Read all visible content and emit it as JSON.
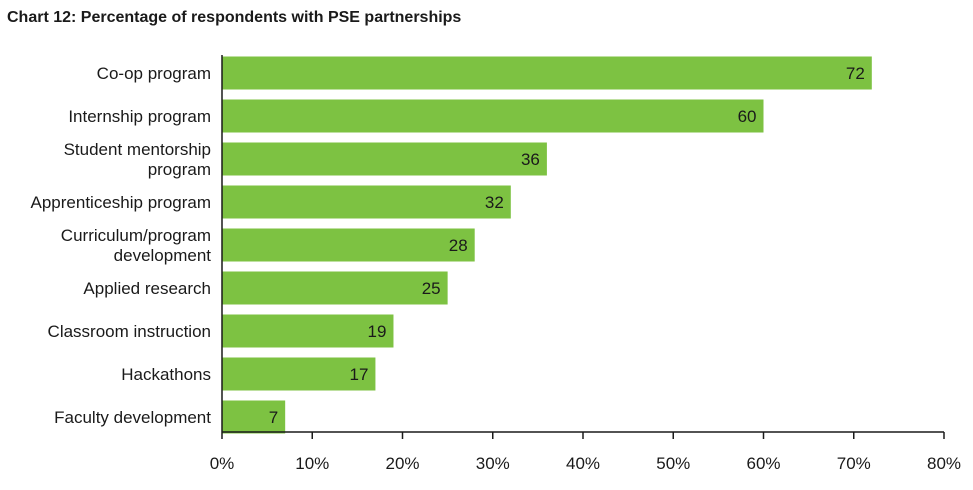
{
  "chart_data": {
    "type": "bar",
    "orientation": "horizontal",
    "title": "Chart 12: Percentage of respondents with PSE partnerships",
    "categories": [
      [
        "Co-op program"
      ],
      [
        "Internship program"
      ],
      [
        "Student mentorship",
        "program"
      ],
      [
        "Apprenticeship program"
      ],
      [
        "Curriculum/program",
        "development"
      ],
      [
        "Applied research"
      ],
      [
        "Classroom instruction"
      ],
      [
        "Hackathons"
      ],
      [
        "Faculty development"
      ]
    ],
    "values": [
      72,
      60,
      36,
      32,
      28,
      25,
      19,
      17,
      7
    ],
    "xlim": [
      0,
      80
    ],
    "xticks": [
      0,
      10,
      20,
      30,
      40,
      50,
      60,
      70,
      80
    ],
    "xtick_labels": [
      "0%",
      "10%",
      "20%",
      "30%",
      "40%",
      "50%",
      "60%",
      "70%",
      "80%"
    ],
    "bar_color": "#7dc242",
    "grid": false
  }
}
